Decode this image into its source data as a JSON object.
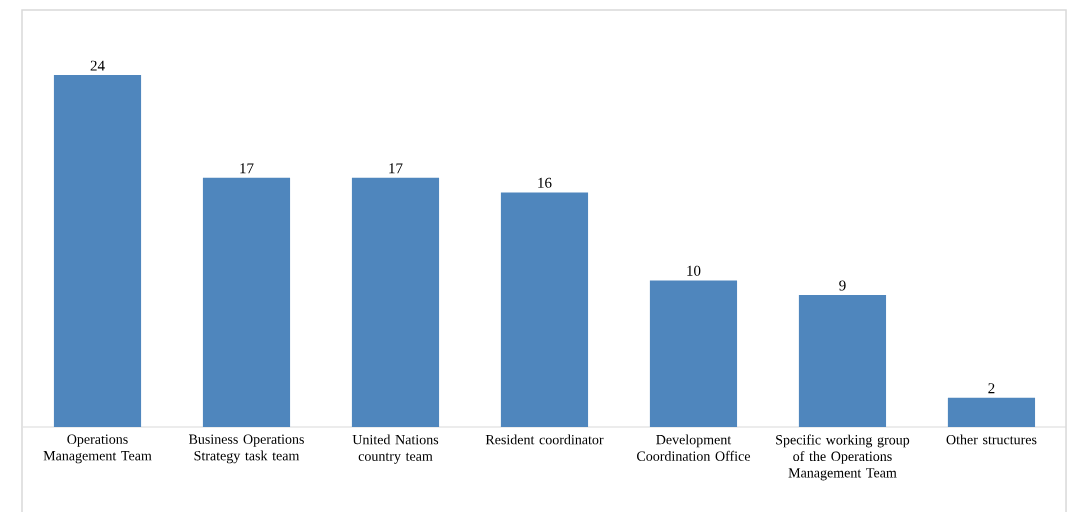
{
  "chart_data": {
    "type": "bar",
    "categories": [
      "Operations Management Team",
      "Business Operations Strategy task team",
      "United Nations country team",
      "Resident coordinator",
      "Development Coordination Office",
      "Specific working group of the Operations Management Team",
      "Other structures"
    ],
    "values": [
      24,
      17,
      17,
      16,
      10,
      9,
      2
    ],
    "color": "#4f86bd",
    "data_labels": true,
    "tick_labels": "x"
  }
}
